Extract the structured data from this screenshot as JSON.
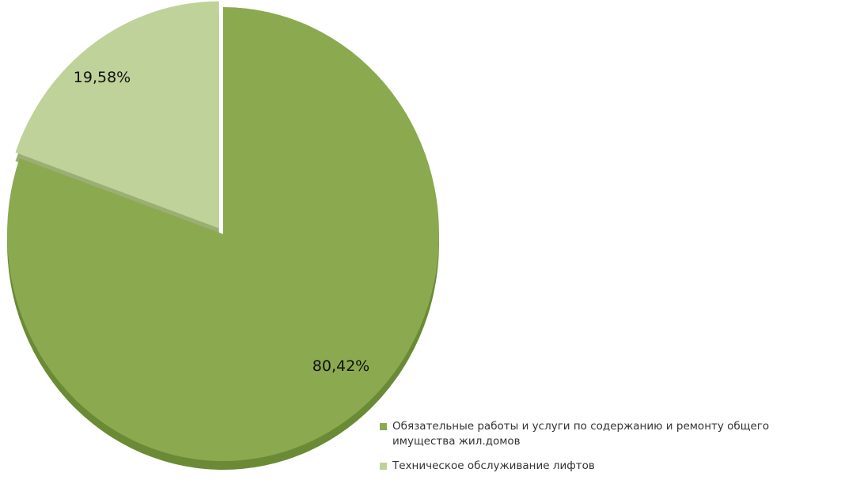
{
  "chart_data": {
    "type": "pie",
    "title": "",
    "start_angle_deg": 0,
    "direction": "clockwise",
    "legend_position": "bottom-right",
    "exploded": true,
    "slices": [
      {
        "label": "Обязательные работы и услуги по содержанию и ремонту общего имущества жил.домов",
        "value": 80.42,
        "value_label": "80,42%",
        "color": "#8BA94F",
        "side_color": "#6B8A36"
      },
      {
        "label": "Техническое обслуживание лифтов",
        "value": 19.58,
        "value_label": "19,58%",
        "color": "#BFD29A",
        "side_color": "#9BAF74"
      }
    ]
  }
}
